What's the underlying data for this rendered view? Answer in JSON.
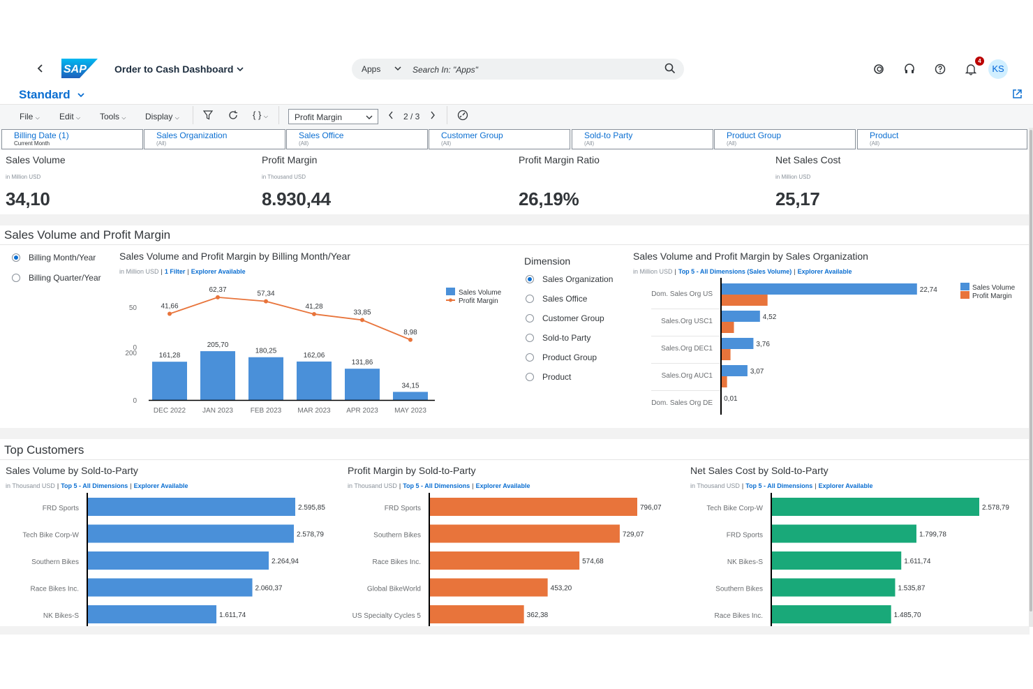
{
  "shell": {
    "app_title": "Order to Cash Dashboard",
    "logo_text": "SAP",
    "search_scope": "Apps",
    "search_placeholder": "Search In: \"Apps\"",
    "notification_count": "4",
    "user_initials": "KS",
    "icons": [
      "back-icon",
      "search-icon",
      "copilot-icon",
      "headset-icon",
      "help-icon",
      "bell-icon"
    ]
  },
  "variant": {
    "label": "Standard"
  },
  "toolbar": {
    "file": "File",
    "edit": "Edit",
    "tools": "Tools",
    "display": "Display",
    "measure_select": "Profit Margin",
    "page_indicator": "2 / 3"
  },
  "filters": [
    {
      "name": "Billing Date (1)",
      "value": "Current Month"
    },
    {
      "name": "Sales Organization",
      "value": "(All)"
    },
    {
      "name": "Sales Office",
      "value": "(All)"
    },
    {
      "name": "Customer Group",
      "value": "(All)"
    },
    {
      "name": "Sold-to Party",
      "value": "(All)"
    },
    {
      "name": "Product Group",
      "value": "(All)"
    },
    {
      "name": "Product",
      "value": "(All)"
    }
  ],
  "kpis": [
    {
      "title": "Sales Volume",
      "unit": "in Million USD",
      "value": "34,10"
    },
    {
      "title": "Profit Margin",
      "unit": "in Thousand USD",
      "value": "8.930,44"
    },
    {
      "title": "Profit Margin Ratio",
      "unit": "",
      "value": "26,19%"
    },
    {
      "title": "Net Sales Cost",
      "unit": "in Million USD",
      "value": "25,17"
    }
  ],
  "section1": {
    "title": "Sales Volume and Profit Margin",
    "time_options": [
      "Billing Month/Year",
      "Billing Quarter/Year"
    ],
    "dimension_label": "Dimension",
    "dimension_options": [
      "Sales Organization",
      "Sales Office",
      "Customer Group",
      "Sold-to Party",
      "Product Group",
      "Product"
    ]
  },
  "section2": {
    "title": "Top Customers"
  },
  "colors": {
    "blue": "#4a90d9",
    "orange": "#e8743b",
    "green": "#19a979",
    "accent": "#0a6ed1"
  },
  "chart_data": [
    {
      "type": "bar+line",
      "title": "Sales Volume and Profit Margin by Billing Month/Year",
      "unit": "in Million USD",
      "links": [
        "1 Filter",
        "Explorer Available"
      ],
      "categories": [
        "DEC 2022",
        "JAN 2023",
        "FEB 2023",
        "MAR 2023",
        "APR 2023",
        "MAY 2023"
      ],
      "series": [
        {
          "name": "Sales Volume",
          "kind": "bar",
          "values": [
            161.28,
            205.7,
            180.25,
            162.06,
            131.86,
            34.15
          ],
          "labels": [
            "161,28",
            "205,70",
            "180,25",
            "162,06",
            "131,86",
            "34,15"
          ]
        },
        {
          "name": "Profit Margin",
          "kind": "line",
          "values": [
            41.66,
            62.37,
            57.34,
            41.28,
            33.85,
            8.98
          ],
          "labels": [
            "41,66",
            "62,37",
            "57,34",
            "41,28",
            "33,85",
            "8,98"
          ]
        }
      ],
      "bar_axis": {
        "ylim": [
          0,
          200
        ],
        "ticks": [
          "0",
          "200"
        ]
      },
      "line_axis": {
        "ylim": [
          0,
          50
        ],
        "ticks": [
          "0",
          "50"
        ]
      }
    },
    {
      "type": "hbar",
      "title": "Sales Volume and Profit Margin by Sales Organization",
      "unit": "in Million USD",
      "links": [
        "Top 5 - All Dimensions (Sales Volume)",
        "Explorer Available"
      ],
      "categories": [
        "Dom. Sales Org US",
        "Sales.Org USC1",
        "Sales.Org DEC1",
        "Sales.Org AUC1",
        "Dom. Sales Org DE"
      ],
      "series": [
        {
          "name": "Sales Volume",
          "values": [
            22.74,
            4.52,
            3.76,
            3.07,
            0.01
          ],
          "labels": [
            "22,74",
            "4,52",
            "3,76",
            "3,07",
            "0,01"
          ]
        },
        {
          "name": "Profit Margin",
          "values": [
            5.4,
            1.5,
            1.1,
            0.7,
            0.0
          ]
        }
      ],
      "xlim": [
        0,
        23
      ]
    },
    {
      "type": "hbar",
      "title": "Sales Volume by Sold-to-Party",
      "unit": "in Thousand USD",
      "links": [
        "Top 5 - All Dimensions",
        "Explorer Available"
      ],
      "categories": [
        "FRD Sports",
        "Tech Bike Corp-W",
        "Southern Bikes",
        "Race Bikes Inc.",
        "NK Bikes-S"
      ],
      "values": [
        2595.85,
        2578.79,
        2264.94,
        2060.37,
        1611.74
      ],
      "labels": [
        "2.595,85",
        "2.578,79",
        "2.264,94",
        "2.060,37",
        "1.611,74"
      ],
      "color": "#4a90d9"
    },
    {
      "type": "hbar",
      "title": "Profit Margin by Sold-to-Party",
      "unit": "in Thousand USD",
      "links": [
        "Top 5 - All Dimensions",
        "Explorer Available"
      ],
      "categories": [
        "FRD Sports",
        "Southern Bikes",
        "Race Bikes Inc.",
        "Global BikeWorld",
        "US Specialty Cycles 5"
      ],
      "values": [
        796.07,
        729.07,
        574.68,
        453.2,
        362.38
      ],
      "labels": [
        "796,07",
        "729,07",
        "574,68",
        "453,20",
        "362,38"
      ],
      "color": "#e8743b"
    },
    {
      "type": "hbar",
      "title": "Net Sales Cost by Sold-to-Party",
      "unit": "in Thousand USD",
      "links": [
        "Top 5 - All Dimensions",
        "Explorer Available"
      ],
      "categories": [
        "Tech Bike Corp-W",
        "FRD Sports",
        "NK Bikes-S",
        "Southern Bikes",
        "Race Bikes Inc."
      ],
      "values": [
        2578.79,
        1799.78,
        1611.74,
        1535.87,
        1485.7
      ],
      "labels": [
        "2.578,79",
        "1.799,78",
        "1.611,74",
        "1.535,87",
        "1.485,70"
      ],
      "color": "#19a979"
    }
  ]
}
